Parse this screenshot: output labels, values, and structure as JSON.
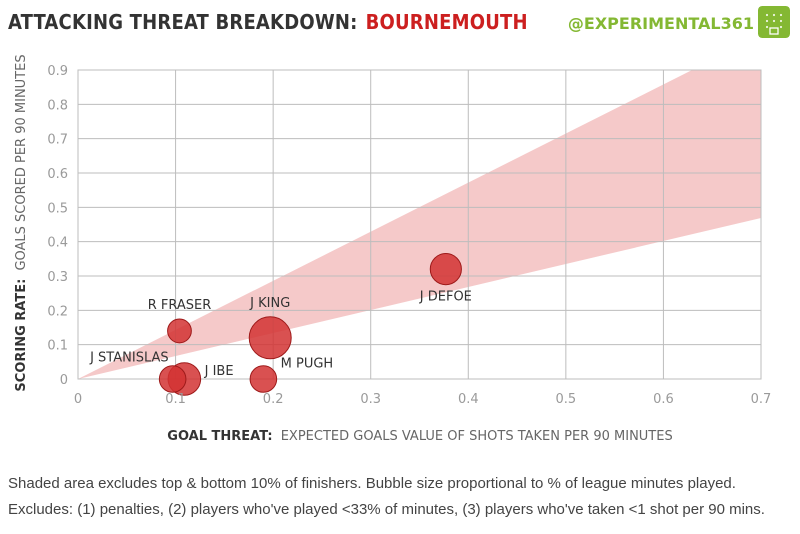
{
  "header": {
    "title_lead": "ATTACKING THREAT BREAKDOWN:",
    "title_team": "BOURNEMOUTH",
    "handle": "@EXPERIMENTAL361"
  },
  "colors": {
    "team": "#cc1f1f",
    "handle": "#84b833",
    "bubble_fill": "#d23232",
    "bubble_stroke": "#9e1a1a",
    "band_fill": "#f2bcbc",
    "grid": "#bdbdbd",
    "axis_text": "#9a9a9a",
    "label_text": "#333333"
  },
  "chart_data": {
    "type": "scatter",
    "xlabel_bold": "GOAL THREAT:",
    "xlabel_rest": "EXPECTED GOALS VALUE OF SHOTS TAKEN PER 90 MINUTES",
    "ylabel_bold": "SCORING RATE:",
    "ylabel_rest": "GOALS SCORED PER 90 MINUTES",
    "xlim": [
      0,
      0.7
    ],
    "ylim": [
      0,
      0.9
    ],
    "xticks": [
      0,
      0.1,
      0.2,
      0.3,
      0.4,
      0.5,
      0.6,
      0.7
    ],
    "xtick_labels": [
      "0",
      "0.1",
      "0.2",
      "0.3",
      "0.4",
      "0.5",
      "0.6",
      "0.7"
    ],
    "yticks": [
      0,
      0.1,
      0.2,
      0.3,
      0.4,
      0.5,
      0.6,
      0.7,
      0.8,
      0.9
    ],
    "ytick_labels": [
      "0",
      "0.1",
      "0.2",
      "0.3",
      "0.4",
      "0.5",
      "0.6",
      "0.7",
      "0.8",
      "0.9"
    ],
    "grid": true,
    "band": {
      "lower_slope": 0.67,
      "upper_slope": 1.43
    },
    "points": [
      {
        "name": "J DEFOE",
        "x": 0.377,
        "y": 0.32,
        "size": 0.55,
        "label_side": "below"
      },
      {
        "name": "J KING",
        "x": 0.197,
        "y": 0.12,
        "size": 1.0,
        "label_side": "above"
      },
      {
        "name": "R FRASER",
        "x": 0.104,
        "y": 0.14,
        "size": 0.32,
        "label_side": "above"
      },
      {
        "name": "J STANISLAS",
        "x": 0.097,
        "y": 0.0,
        "size": 0.4,
        "label_side": "upper-left"
      },
      {
        "name": "J IBE",
        "x": 0.109,
        "y": 0.0,
        "size": 0.6,
        "label_side": "right"
      },
      {
        "name": "M PUGH",
        "x": 0.19,
        "y": 0.0,
        "size": 0.4,
        "label_side": "upper-right"
      }
    ]
  },
  "footnotes": [
    "Shaded area excludes top & bottom 10% of finishers. Bubble size proportional to % of league minutes played.",
    "Excludes: (1) penalties, (2) players who've played <33% of minutes, (3) players who've taken <1 shot per 90 mins."
  ]
}
